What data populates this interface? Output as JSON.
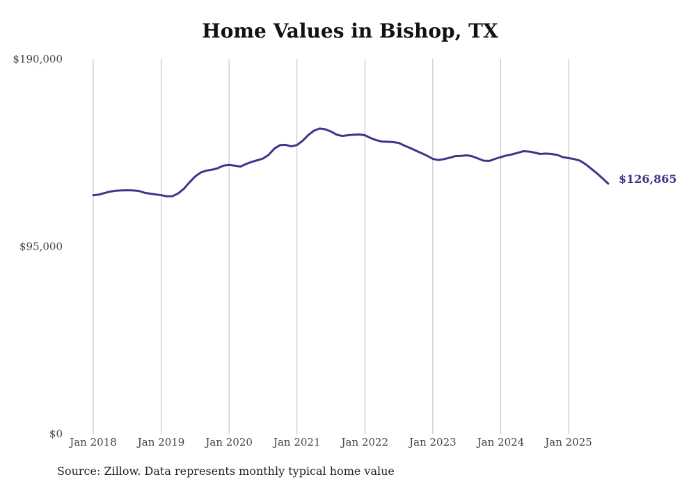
{
  "chart_data": {
    "type": "line",
    "title": "Home Values in Bishop, TX",
    "source": "Source: Zillow. Data represents monthly typical home value",
    "line_color": "#3d3589",
    "y_ticks": [
      {
        "value": 190000,
        "label": "$190,000"
      },
      {
        "value": 95000,
        "label": "$95,000"
      },
      {
        "value": 0,
        "label": "$0"
      }
    ],
    "ylim": [
      0,
      190000
    ],
    "x_ticks": [
      {
        "value": "2018-01",
        "label": "Jan 2018"
      },
      {
        "value": "2019-01",
        "label": "Jan 2019"
      },
      {
        "value": "2020-01",
        "label": "Jan 2020"
      },
      {
        "value": "2021-01",
        "label": "Jan 2021"
      },
      {
        "value": "2022-01",
        "label": "Jan 2022"
      },
      {
        "value": "2023-01",
        "label": "Jan 2023"
      },
      {
        "value": "2024-01",
        "label": "Jan 2024"
      },
      {
        "value": "2025-01",
        "label": "Jan 2025"
      }
    ],
    "xlim": [
      "2018-01",
      "2025-08"
    ],
    "grid": "vertical",
    "end_label": "$126,865",
    "series": [
      {
        "x": [
          "2018-01",
          "2018-02",
          "2018-03",
          "2018-04",
          "2018-05",
          "2018-06",
          "2018-07",
          "2018-08",
          "2018-09",
          "2018-10",
          "2018-11",
          "2018-12",
          "2019-01",
          "2019-02",
          "2019-03",
          "2019-04",
          "2019-05",
          "2019-06",
          "2019-07",
          "2019-08",
          "2019-09",
          "2019-10",
          "2019-11",
          "2019-12",
          "2020-01",
          "2020-02",
          "2020-03",
          "2020-04",
          "2020-05",
          "2020-06",
          "2020-07",
          "2020-08",
          "2020-09",
          "2020-10",
          "2020-11",
          "2020-12",
          "2021-01",
          "2021-02",
          "2021-03",
          "2021-04",
          "2021-05",
          "2021-06",
          "2021-07",
          "2021-08",
          "2021-09",
          "2021-10",
          "2021-11",
          "2021-12",
          "2022-01",
          "2022-02",
          "2022-03",
          "2022-04",
          "2022-05",
          "2022-06",
          "2022-07",
          "2022-08",
          "2022-09",
          "2022-10",
          "2022-11",
          "2022-12",
          "2023-01",
          "2023-02",
          "2023-03",
          "2023-04",
          "2023-05",
          "2023-06",
          "2023-07",
          "2023-08",
          "2023-09",
          "2023-10",
          "2023-11",
          "2023-12",
          "2024-01",
          "2024-02",
          "2024-03",
          "2024-04",
          "2024-05",
          "2024-06",
          "2024-07",
          "2024-08",
          "2024-09",
          "2024-10",
          "2024-11",
          "2024-12",
          "2025-01",
          "2025-02",
          "2025-03",
          "2025-04",
          "2025-05",
          "2025-06",
          "2025-07",
          "2025-08"
        ],
        "values": [
          121000,
          121300,
          122100,
          122800,
          123300,
          123400,
          123500,
          123400,
          123200,
          122300,
          121800,
          121400,
          121000,
          120400,
          120500,
          121900,
          124200,
          127500,
          130500,
          132500,
          133500,
          133900,
          134700,
          136000,
          136300,
          136000,
          135500,
          136800,
          137900,
          138700,
          139600,
          141500,
          144600,
          146400,
          146500,
          145800,
          146400,
          148600,
          151500,
          153700,
          154800,
          154400,
          153300,
          151700,
          151000,
          151400,
          151700,
          151800,
          151400,
          150000,
          148900,
          148200,
          148100,
          147900,
          147500,
          146100,
          144900,
          143600,
          142300,
          141000,
          139400,
          138800,
          139300,
          140000,
          140800,
          140900,
          141200,
          140700,
          139600,
          138500,
          138400,
          139400,
          140300,
          141100,
          141700,
          142500,
          143300,
          143100,
          142600,
          141900,
          142100,
          141900,
          141400,
          140300,
          139800,
          139300,
          138500,
          136700,
          134400,
          132100,
          129500,
          126865
        ]
      }
    ]
  }
}
